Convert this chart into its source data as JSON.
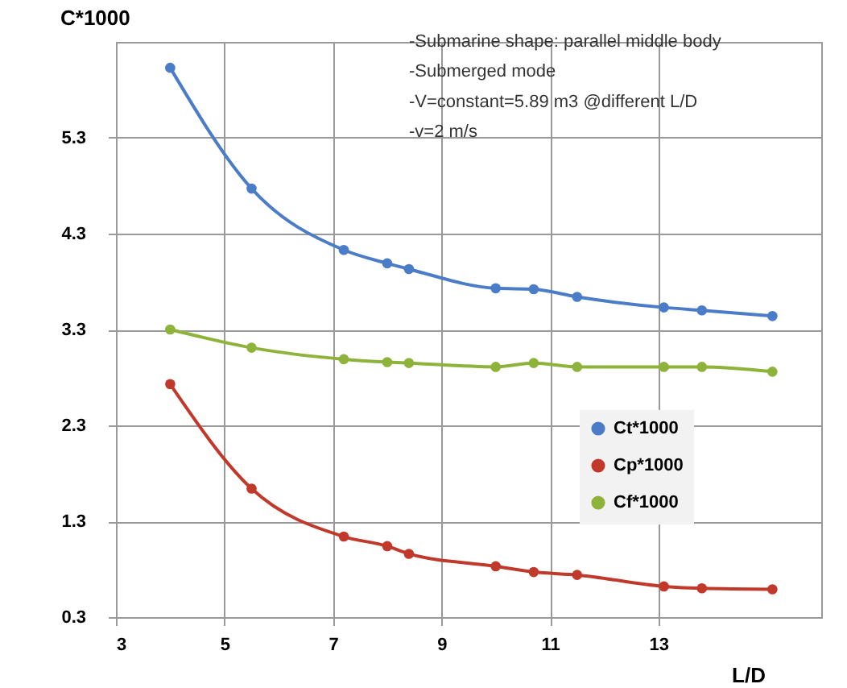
{
  "chart_data": {
    "type": "line",
    "xlabel": "L/D",
    "ylabel": "C*1000",
    "x": [
      4,
      5.5,
      7.2,
      8,
      8.4,
      10,
      10.7,
      11.5,
      13.1,
      13.8,
      15.1
    ],
    "series": [
      {
        "name": "Ct*1000",
        "color": "#4a7cc7",
        "values": [
          6.03,
          4.77,
          4.13,
          3.99,
          3.93,
          3.73,
          3.72,
          3.64,
          3.53,
          3.5,
          3.44
        ]
      },
      {
        "name": "Cp*1000",
        "color": "#c0392b",
        "values": [
          2.73,
          1.64,
          1.14,
          1.04,
          0.96,
          0.83,
          0.77,
          0.74,
          0.62,
          0.6,
          0.59
        ]
      },
      {
        "name": "Cf*1000",
        "color": "#8db33a",
        "values": [
          3.3,
          3.11,
          2.99,
          2.96,
          2.95,
          2.91,
          2.95,
          2.91,
          2.91,
          2.91,
          2.86
        ]
      }
    ],
    "xlim": [
      3,
      16
    ],
    "xticks": [
      3,
      5,
      7,
      9,
      11,
      13
    ],
    "ylim": [
      0.3,
      6.3
    ],
    "yticks": [
      0.3,
      1.3,
      2.3,
      3.3,
      4.3,
      5.3
    ],
    "annotations": [
      "-Submarine shape: parallel middle body",
      "-Submerged mode",
      "-V=constant=5.89  m3  @different L/D",
      "-v=2  m/s"
    ],
    "grid": true,
    "legend": "right",
    "marker": "circle",
    "line_style": "solid"
  }
}
